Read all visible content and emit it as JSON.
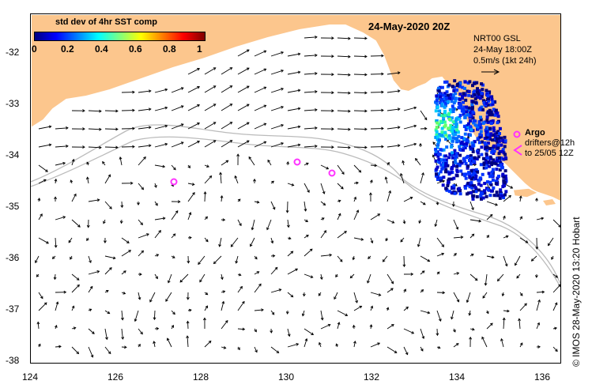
{
  "map": {
    "title": "24-May-2020 20Z",
    "colorbar": {
      "label": "std dev of 4hr SST comp",
      "ticks": [
        "0",
        "0.2",
        "0.4",
        "0.6",
        "0.8",
        "1"
      ]
    },
    "model_info": {
      "line1": "NRT00 GSL",
      "line2": "24-May 18:00Z",
      "line3": "0.5m/s (1kt 24h)"
    },
    "legend": {
      "argo_label": "Argo",
      "drifters_line1": "drifters@12h",
      "drifters_line2": "to 25/05 12Z"
    },
    "lon_ticks": [
      "124",
      "126",
      "128",
      "130",
      "132",
      "134",
      "136"
    ],
    "lat_ticks": [
      "-32",
      "-33",
      "-34",
      "-35",
      "-36",
      "-37",
      "-38"
    ],
    "credit": "© IMOS 28-May-2020 13:20 Hobart",
    "colors": {
      "land": "#fcc68d",
      "coast": "#bbbbbb",
      "argo": "#ff33ff"
    }
  }
}
